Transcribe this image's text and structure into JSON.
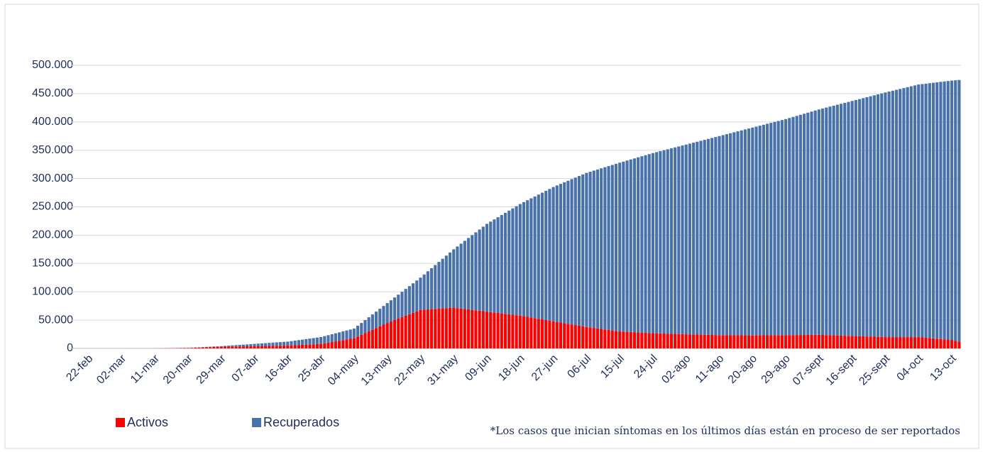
{
  "chart_data": {
    "type": "stacked-bar",
    "footnote": "*Los casos que inician síntomas en los últimos días están en proceso de ser reportados",
    "legend": "bottom-left",
    "ylim": [
      0,
      500000
    ],
    "yticks": [
      0,
      {
        "value": 50000,
        "label": "50.000"
      },
      {
        "value": 100000,
        "label": "100.000"
      },
      {
        "value": 150000,
        "label": "150.000"
      },
      {
        "value": 200000,
        "label": "200.000"
      },
      {
        "value": 250000,
        "label": "250.000"
      },
      {
        "value": 300000,
        "label": "300.000"
      },
      {
        "value": 350000,
        "label": "350.000"
      },
      {
        "value": 400000,
        "label": "400.000"
      },
      {
        "value": 450000,
        "label": "450.000"
      },
      {
        "value": 500000,
        "label": "500.000"
      }
    ],
    "grid": true,
    "categories": [
      "22-feb",
      null,
      null,
      null,
      null,
      null,
      null,
      null,
      null,
      "02-mar",
      null,
      null,
      null,
      null,
      null,
      null,
      null,
      null,
      "11-mar",
      null,
      null,
      null,
      null,
      null,
      null,
      null,
      null,
      "20-mar",
      null,
      null,
      null,
      null,
      null,
      null,
      null,
      null,
      "29-mar",
      null,
      null,
      null,
      null,
      null,
      null,
      null,
      null,
      "07-abr",
      null,
      null,
      null,
      null,
      null,
      null,
      null,
      null,
      "16-abr",
      null,
      null,
      null,
      null,
      null,
      null,
      null,
      null,
      "25-abr",
      null,
      null,
      null,
      null,
      null,
      null,
      null,
      null,
      "04-may",
      null,
      null,
      null,
      null,
      null,
      null,
      null,
      null,
      "13-may",
      null,
      null,
      null,
      null,
      null,
      null,
      null,
      null,
      "22-may",
      null,
      null,
      null,
      null,
      null,
      null,
      null,
      null,
      "31-may",
      null,
      null,
      null,
      null,
      null,
      null,
      null,
      null,
      "09-jun",
      null,
      null,
      null,
      null,
      null,
      null,
      null,
      null,
      "18-jun",
      null,
      null,
      null,
      null,
      null,
      null,
      null,
      null,
      "27-jun",
      null,
      null,
      null,
      null,
      null,
      null,
      null,
      null,
      "06-jul",
      null,
      null,
      null,
      null,
      null,
      null,
      null,
      null,
      "15-jul",
      null,
      null,
      null,
      null,
      null,
      null,
      null,
      null,
      "24-jul",
      null,
      null,
      null,
      null,
      null,
      null,
      null,
      null,
      "02-ago",
      null,
      null,
      null,
      null,
      null,
      null,
      null,
      null,
      "11-ago",
      null,
      null,
      null,
      null,
      null,
      null,
      null,
      null,
      "20-ago",
      null,
      null,
      null,
      null,
      null,
      null,
      null,
      null,
      "29-ago",
      null,
      null,
      null,
      null,
      null,
      null,
      null,
      null,
      "07-sept",
      null,
      null,
      null,
      null,
      null,
      null,
      null,
      null,
      "16-sept",
      null,
      null,
      null,
      null,
      null,
      null,
      null,
      null,
      "25-sept",
      null,
      null,
      null,
      null,
      null,
      null,
      null,
      null,
      "04-oct",
      null,
      null,
      null,
      null,
      null,
      null,
      null,
      null,
      "13-oct",
      null,
      null
    ],
    "series": [
      {
        "name": "Activos",
        "color": "#ff0000",
        "values": [
          0,
          1,
          2,
          3,
          4,
          6,
          7,
          8,
          9,
          10,
          20,
          30,
          40,
          50,
          60,
          70,
          80,
          90,
          100,
          178,
          256,
          333,
          411,
          489,
          567,
          644,
          722,
          800,
          1044,
          1289,
          1533,
          1778,
          2022,
          2267,
          2511,
          2756,
          3000,
          3111,
          3222,
          3333,
          3444,
          3556,
          3667,
          3778,
          3889,
          4000,
          4111,
          4222,
          4333,
          4444,
          4556,
          4667,
          4778,
          4889,
          5000,
          5333,
          5667,
          6000,
          6333,
          6667,
          7000,
          7333,
          7667,
          8000,
          9111,
          10222,
          11333,
          12444,
          13556,
          14667,
          15778,
          16889,
          18000,
          21000,
          24000,
          27000,
          30000,
          33000,
          36000,
          39000,
          42000,
          45000,
          47556,
          50111,
          52667,
          55222,
          57778,
          60333,
          62889,
          65444,
          68000,
          68444,
          68889,
          69333,
          69778,
          70222,
          70667,
          71111,
          71556,
          72000,
          71222,
          70444,
          69667,
          68889,
          68111,
          67333,
          66556,
          65778,
          65000,
          64222,
          63444,
          62667,
          61889,
          61111,
          60333,
          59556,
          58778,
          58000,
          56889,
          55778,
          54667,
          53556,
          52444,
          51333,
          50222,
          49111,
          48000,
          46889,
          45778,
          44667,
          43556,
          42444,
          41333,
          40222,
          39111,
          38000,
          37111,
          36222,
          35333,
          34444,
          33556,
          32667,
          31778,
          30889,
          30000,
          29667,
          29333,
          29000,
          28667,
          28333,
          28000,
          27667,
          27333,
          27000,
          26778,
          26556,
          26333,
          26111,
          25889,
          25667,
          25444,
          25222,
          25000,
          24833,
          24667,
          24500,
          24333,
          24167,
          24000,
          23833,
          23667,
          23500,
          23444,
          23389,
          23333,
          23278,
          23222,
          23167,
          23111,
          23056,
          23000,
          23056,
          23111,
          23167,
          23222,
          23278,
          23333,
          23389,
          23444,
          23500,
          23556,
          23611,
          23667,
          23722,
          23778,
          23833,
          23889,
          23944,
          24000,
          23778,
          23556,
          23333,
          23111,
          22889,
          22667,
          22444,
          22222,
          22000,
          21778,
          21556,
          21333,
          21111,
          20889,
          20667,
          20444,
          20222,
          20000,
          20000,
          20000,
          20000,
          20000,
          20000,
          20000,
          20000,
          20000,
          20000,
          19444,
          18889,
          18333,
          17778,
          17222,
          16667,
          16111,
          15556,
          15000,
          13500,
          12000
        ]
      },
      {
        "name": "Recuperados",
        "color": "#4a72aa",
        "values": [
          0,
          0,
          0,
          0,
          0,
          0,
          0,
          0,
          0,
          0,
          0,
          0,
          0,
          0,
          0,
          0,
          0,
          0,
          0,
          22,
          44,
          67,
          89,
          111,
          133,
          156,
          178,
          200,
          289,
          378,
          467,
          556,
          644,
          733,
          822,
          911,
          1000,
          1333,
          1667,
          2000,
          2333,
          2667,
          3000,
          3333,
          3667,
          4000,
          4333,
          4667,
          5000,
          5333,
          5667,
          6000,
          6333,
          6667,
          7000,
          7556,
          8111,
          8667,
          9222,
          9778,
          10333,
          10889,
          11444,
          12000,
          12556,
          13111,
          13667,
          14222,
          14778,
          15333,
          15889,
          16444,
          17000,
          19000,
          21000,
          23000,
          25000,
          27000,
          29000,
          31000,
          33000,
          35000,
          37444,
          39889,
          42333,
          44778,
          47222,
          49667,
          52111,
          54556,
          57000,
          62111,
          67222,
          72333,
          77444,
          82556,
          87667,
          92778,
          97889,
          103000,
          108778,
          114556,
          120333,
          126111,
          131889,
          137667,
          143444,
          149222,
          155000,
          159667,
          164333,
          169000,
          173667,
          178333,
          183000,
          187667,
          192333,
          197000,
          201444,
          205889,
          210333,
          214778,
          219222,
          223667,
          228111,
          232556,
          237000,
          240889,
          244778,
          248667,
          252556,
          256444,
          260333,
          264222,
          268111,
          272000,
          274889,
          277778,
          280667,
          283556,
          286444,
          289333,
          292222,
          295111,
          298000,
          300222,
          302444,
          304667,
          306889,
          309111,
          311333,
          313556,
          315778,
          318000,
          319889,
          321778,
          323667,
          325556,
          327444,
          329333,
          331222,
          333111,
          335000,
          336833,
          338667,
          340500,
          342333,
          344167,
          346000,
          347833,
          349667,
          351500,
          353222,
          354944,
          356667,
          358389,
          360111,
          361833,
          363556,
          365278,
          367000,
          368611,
          370222,
          371833,
          373444,
          375056,
          376667,
          378278,
          379889,
          381500,
          383333,
          385167,
          387000,
          388833,
          390667,
          392500,
          394333,
          396167,
          398000,
          399889,
          401778,
          403667,
          405556,
          407444,
          409333,
          411222,
          413111,
          415000,
          416889,
          418778,
          420667,
          422556,
          424444,
          426333,
          428222,
          430111,
          432000,
          433556,
          435111,
          436667,
          438222,
          439778,
          441333,
          442889,
          444444,
          446000,
          447333,
          448667,
          450000,
          451333,
          452667,
          454000,
          455333,
          456667,
          458000,
          460000,
          462000
        ]
      }
    ]
  }
}
